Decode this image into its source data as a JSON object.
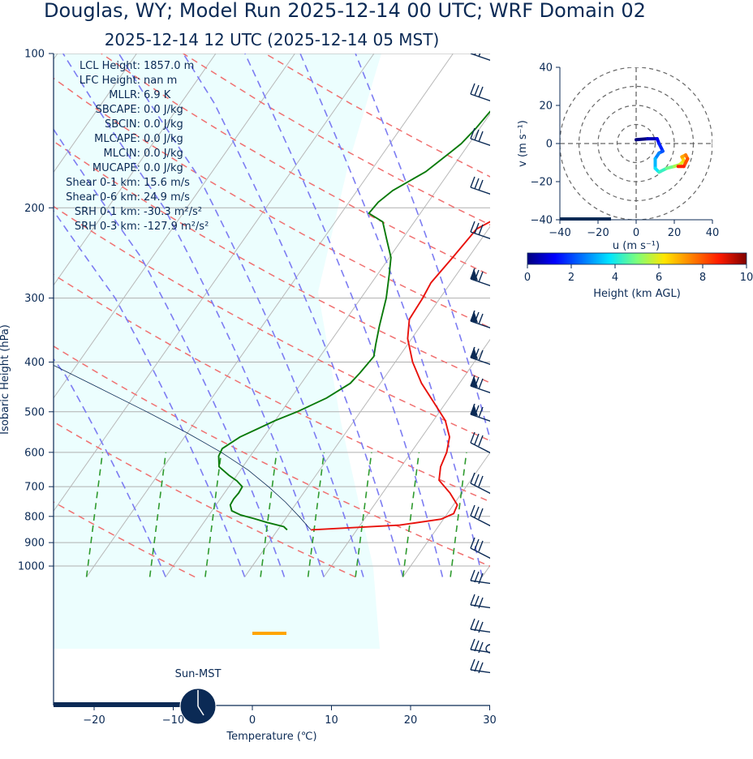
{
  "chart_data": [
    {
      "type": "line",
      "title": "Douglas, WY; Model Run 2025-12-14 00 UTC; WRF Domain 02",
      "subtitle": "2025-12-14 12 UTC  (2025-12-14 05 MST)",
      "xlabel": "Temperature (℃)",
      "ylabel": "Isobaric Height (hPa)",
      "xlim": [
        -25,
        30
      ],
      "ylim": [
        1050,
        100
      ],
      "log_y": true,
      "x_ticks": [
        -20,
        -10,
        0,
        10,
        20,
        30
      ],
      "y_ticks": [
        100,
        200,
        300,
        400,
        500,
        600,
        700,
        800,
        900,
        1000
      ],
      "grid": true,
      "series": [
        {
          "name": "temperature",
          "color": "#e8120c",
          "points": [
            [
              4.2,
              850
            ],
            [
              15,
              832
            ],
            [
              19.7,
              810
            ],
            [
              20.8,
              790
            ],
            [
              20.5,
              760
            ],
            [
              18.5,
              720
            ],
            [
              16,
              680
            ],
            [
              15,
              640
            ],
            [
              14.5,
              600
            ],
            [
              13.5,
              560
            ],
            [
              11.5,
              520
            ],
            [
              8.5,
              480
            ],
            [
              5.2,
              440
            ],
            [
              2.2,
              400
            ],
            [
              -0.5,
              360
            ],
            [
              -2,
              330
            ],
            [
              -2.2,
              300
            ],
            [
              -2.5,
              280
            ],
            [
              -2,
              250
            ],
            [
              -1.5,
              220
            ],
            [
              0,
              210
            ],
            [
              1.2,
              195
            ],
            [
              3.5,
              180
            ],
            [
              5.5,
              165
            ],
            [
              8.2,
              145
            ],
            [
              10.8,
              130
            ],
            [
              12.2,
              120
            ],
            [
              14,
              110
            ],
            [
              15.3,
              100
            ]
          ]
        },
        {
          "name": "dewpoint",
          "color": "#0a7a0a",
          "points": [
            [
              1.2,
              850
            ],
            [
              0.5,
              838
            ],
            [
              -2,
              822
            ],
            [
              -4,
              808
            ],
            [
              -6,
              795
            ],
            [
              -7.5,
              780
            ],
            [
              -8.2,
              760
            ],
            [
              -8.3,
              740
            ],
            [
              -8.2,
              720
            ],
            [
              -8.3,
              700
            ],
            [
              -9.5,
              682
            ],
            [
              -11,
              665
            ],
            [
              -13,
              640
            ],
            [
              -14,
              610
            ],
            [
              -14.2,
              590
            ],
            [
              -13,
              560
            ],
            [
              -11.5,
              540
            ],
            [
              -10,
              520
            ],
            [
              -8,
              500
            ],
            [
              -5.5,
              470
            ],
            [
              -3.8,
              440
            ],
            [
              -3.5,
              420
            ],
            [
              -3.2,
              390
            ],
            [
              -4,
              370
            ],
            [
              -5.2,
              340
            ],
            [
              -6.8,
              300
            ],
            [
              -8.5,
              270
            ],
            [
              -9.8,
              250
            ],
            [
              -12,
              230
            ],
            [
              -14,
              213
            ],
            [
              -16.5,
              205
            ],
            [
              -16.3,
              195
            ],
            [
              -15.5,
              185
            ],
            [
              -13,
              170
            ],
            [
              -11.5,
              155
            ],
            [
              -11,
              150
            ],
            [
              -10.5,
              140
            ],
            [
              -10.2,
              130
            ],
            [
              -9.5,
              120
            ],
            [
              -8.2,
              110
            ],
            [
              -6,
              100
            ]
          ]
        }
      ],
      "annotations": {
        "sun_label": "Sun-MST",
        "stats": [
          {
            "label": "LCL Height:",
            "value": "1857.0 m"
          },
          {
            "label": "LFC Height:",
            "value": "nan m"
          },
          {
            "label": "MLLR:",
            "value": "6.9 K"
          },
          {
            "label": "SBCAPE:",
            "value": "0.0 J/kg"
          },
          {
            "label": "SBCIN:",
            "value": "0.0 J/kg"
          },
          {
            "label": "MLCAPE:",
            "value": "0.0 J/kg"
          },
          {
            "label": "MLCIN:",
            "value": "0.0 J/kg"
          },
          {
            "label": "MUCAPE:",
            "value": "0.0 J/kg"
          },
          {
            "label": "Shear 0-1 km:",
            "value": "15.6 m/s"
          },
          {
            "label": "Shear 0-6 km:",
            "value": "24.9 m/s"
          },
          {
            "label": "SRH 0-1 km:",
            "value": "-30.3 m²/s²"
          },
          {
            "label": "SRH 0-3 km:",
            "value": "-127.9 m²/s²"
          }
        ]
      }
    },
    {
      "type": "scatter",
      "xlabel": "u (m s⁻¹)",
      "ylabel": "v (m s⁻¹)",
      "xlim": [
        -40,
        40
      ],
      "ylim": [
        -40,
        40
      ],
      "x_ticks": [
        -40,
        -20,
        0,
        20,
        40
      ],
      "y_ticks": [
        -40,
        -20,
        0,
        20,
        40
      ],
      "points": [
        [
          0,
          2
        ],
        [
          6,
          2.5
        ],
        [
          11,
          2.5
        ],
        [
          12,
          0
        ],
        [
          14,
          -4
        ],
        [
          12,
          -5
        ],
        [
          10,
          -8
        ],
        [
          10,
          -13
        ],
        [
          12,
          -15
        ],
        [
          16,
          -13
        ],
        [
          20,
          -12
        ],
        [
          23,
          -11
        ],
        [
          25,
          -9
        ],
        [
          24,
          -7
        ],
        [
          26,
          -6
        ],
        [
          27,
          -8
        ],
        [
          25,
          -12
        ],
        [
          22,
          -12
        ]
      ],
      "colorbar": {
        "label": "Height (km AGL)",
        "range": [
          0,
          10
        ],
        "ticks": [
          0,
          2,
          4,
          6,
          8,
          10
        ]
      }
    }
  ]
}
